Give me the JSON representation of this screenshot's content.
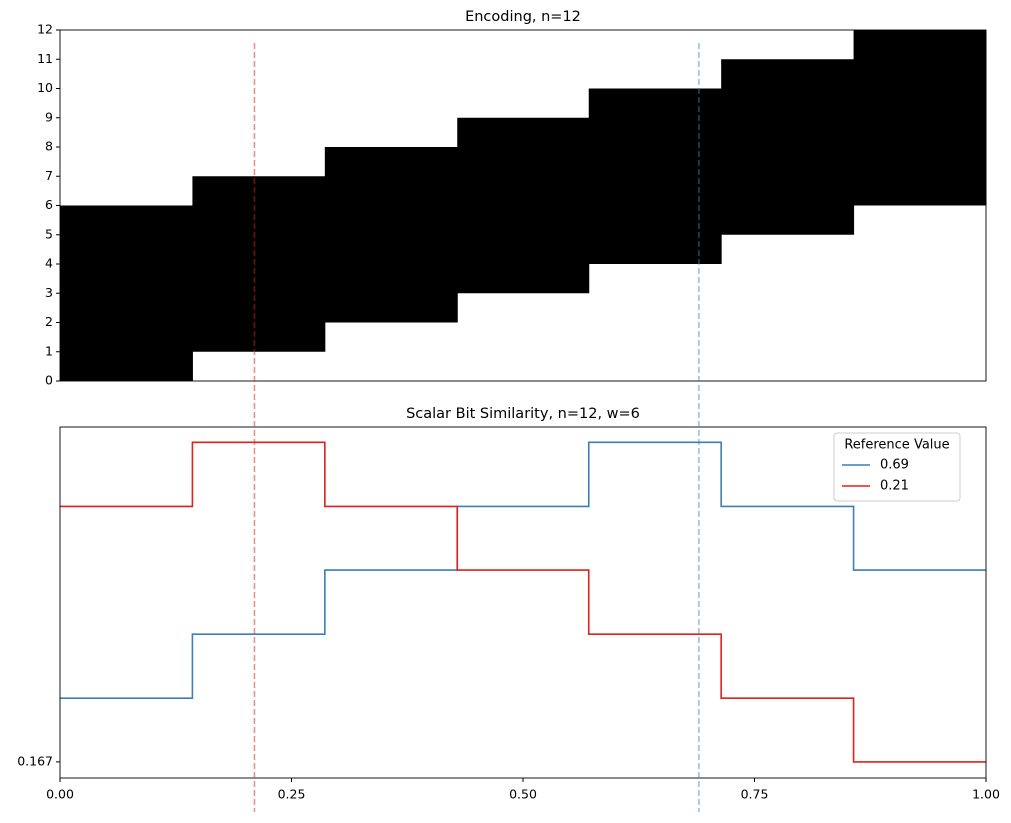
{
  "chart_data": [
    {
      "type": "floating_bar",
      "title": "Encoding, n=12",
      "x": [
        0,
        0.143,
        0.286,
        0.429,
        0.571,
        0.714,
        0.857
      ],
      "low": [
        0,
        1,
        2,
        3,
        4,
        5,
        6
      ],
      "high": [
        6,
        7,
        8,
        9,
        10,
        11,
        12
      ],
      "color": "#000000",
      "xlim": [
        0,
        1
      ],
      "ylim": [
        0,
        12
      ],
      "yticks": [
        0,
        1,
        2,
        3,
        4,
        5,
        6,
        7,
        8,
        9,
        10,
        11,
        12
      ]
    },
    {
      "type": "step",
      "title": "Scalar Bit Similarity, n=12, w=6",
      "x": [
        0,
        0.143,
        0.286,
        0.429,
        0.571,
        0.714,
        0.857
      ],
      "series": [
        {
          "name": "0.69",
          "ref": 0.69,
          "color": "#3a7fb6",
          "values": [
            0.333,
            0.5,
            0.667,
            0.833,
            1,
            0.833,
            0.667
          ]
        },
        {
          "name": "0.21",
          "ref": 0.21,
          "color": "#e0201b",
          "values": [
            0.833,
            1,
            0.833,
            0.667,
            0.5,
            0.333,
            0.167
          ]
        }
      ],
      "xlim": [
        0,
        1
      ],
      "ylim": [
        0.125,
        1.04
      ],
      "xticks": [
        {
          "value": 0,
          "label": "0.00"
        },
        {
          "value": 0.25,
          "label": "0.25"
        },
        {
          "value": 0.5,
          "label": "0.50"
        },
        {
          "value": 0.75,
          "label": "0.75"
        },
        {
          "value": 1,
          "label": "1.00"
        }
      ],
      "yticks": [
        0.167
      ],
      "legend": {
        "title": "Reference Value",
        "loc": "upper right"
      }
    }
  ]
}
